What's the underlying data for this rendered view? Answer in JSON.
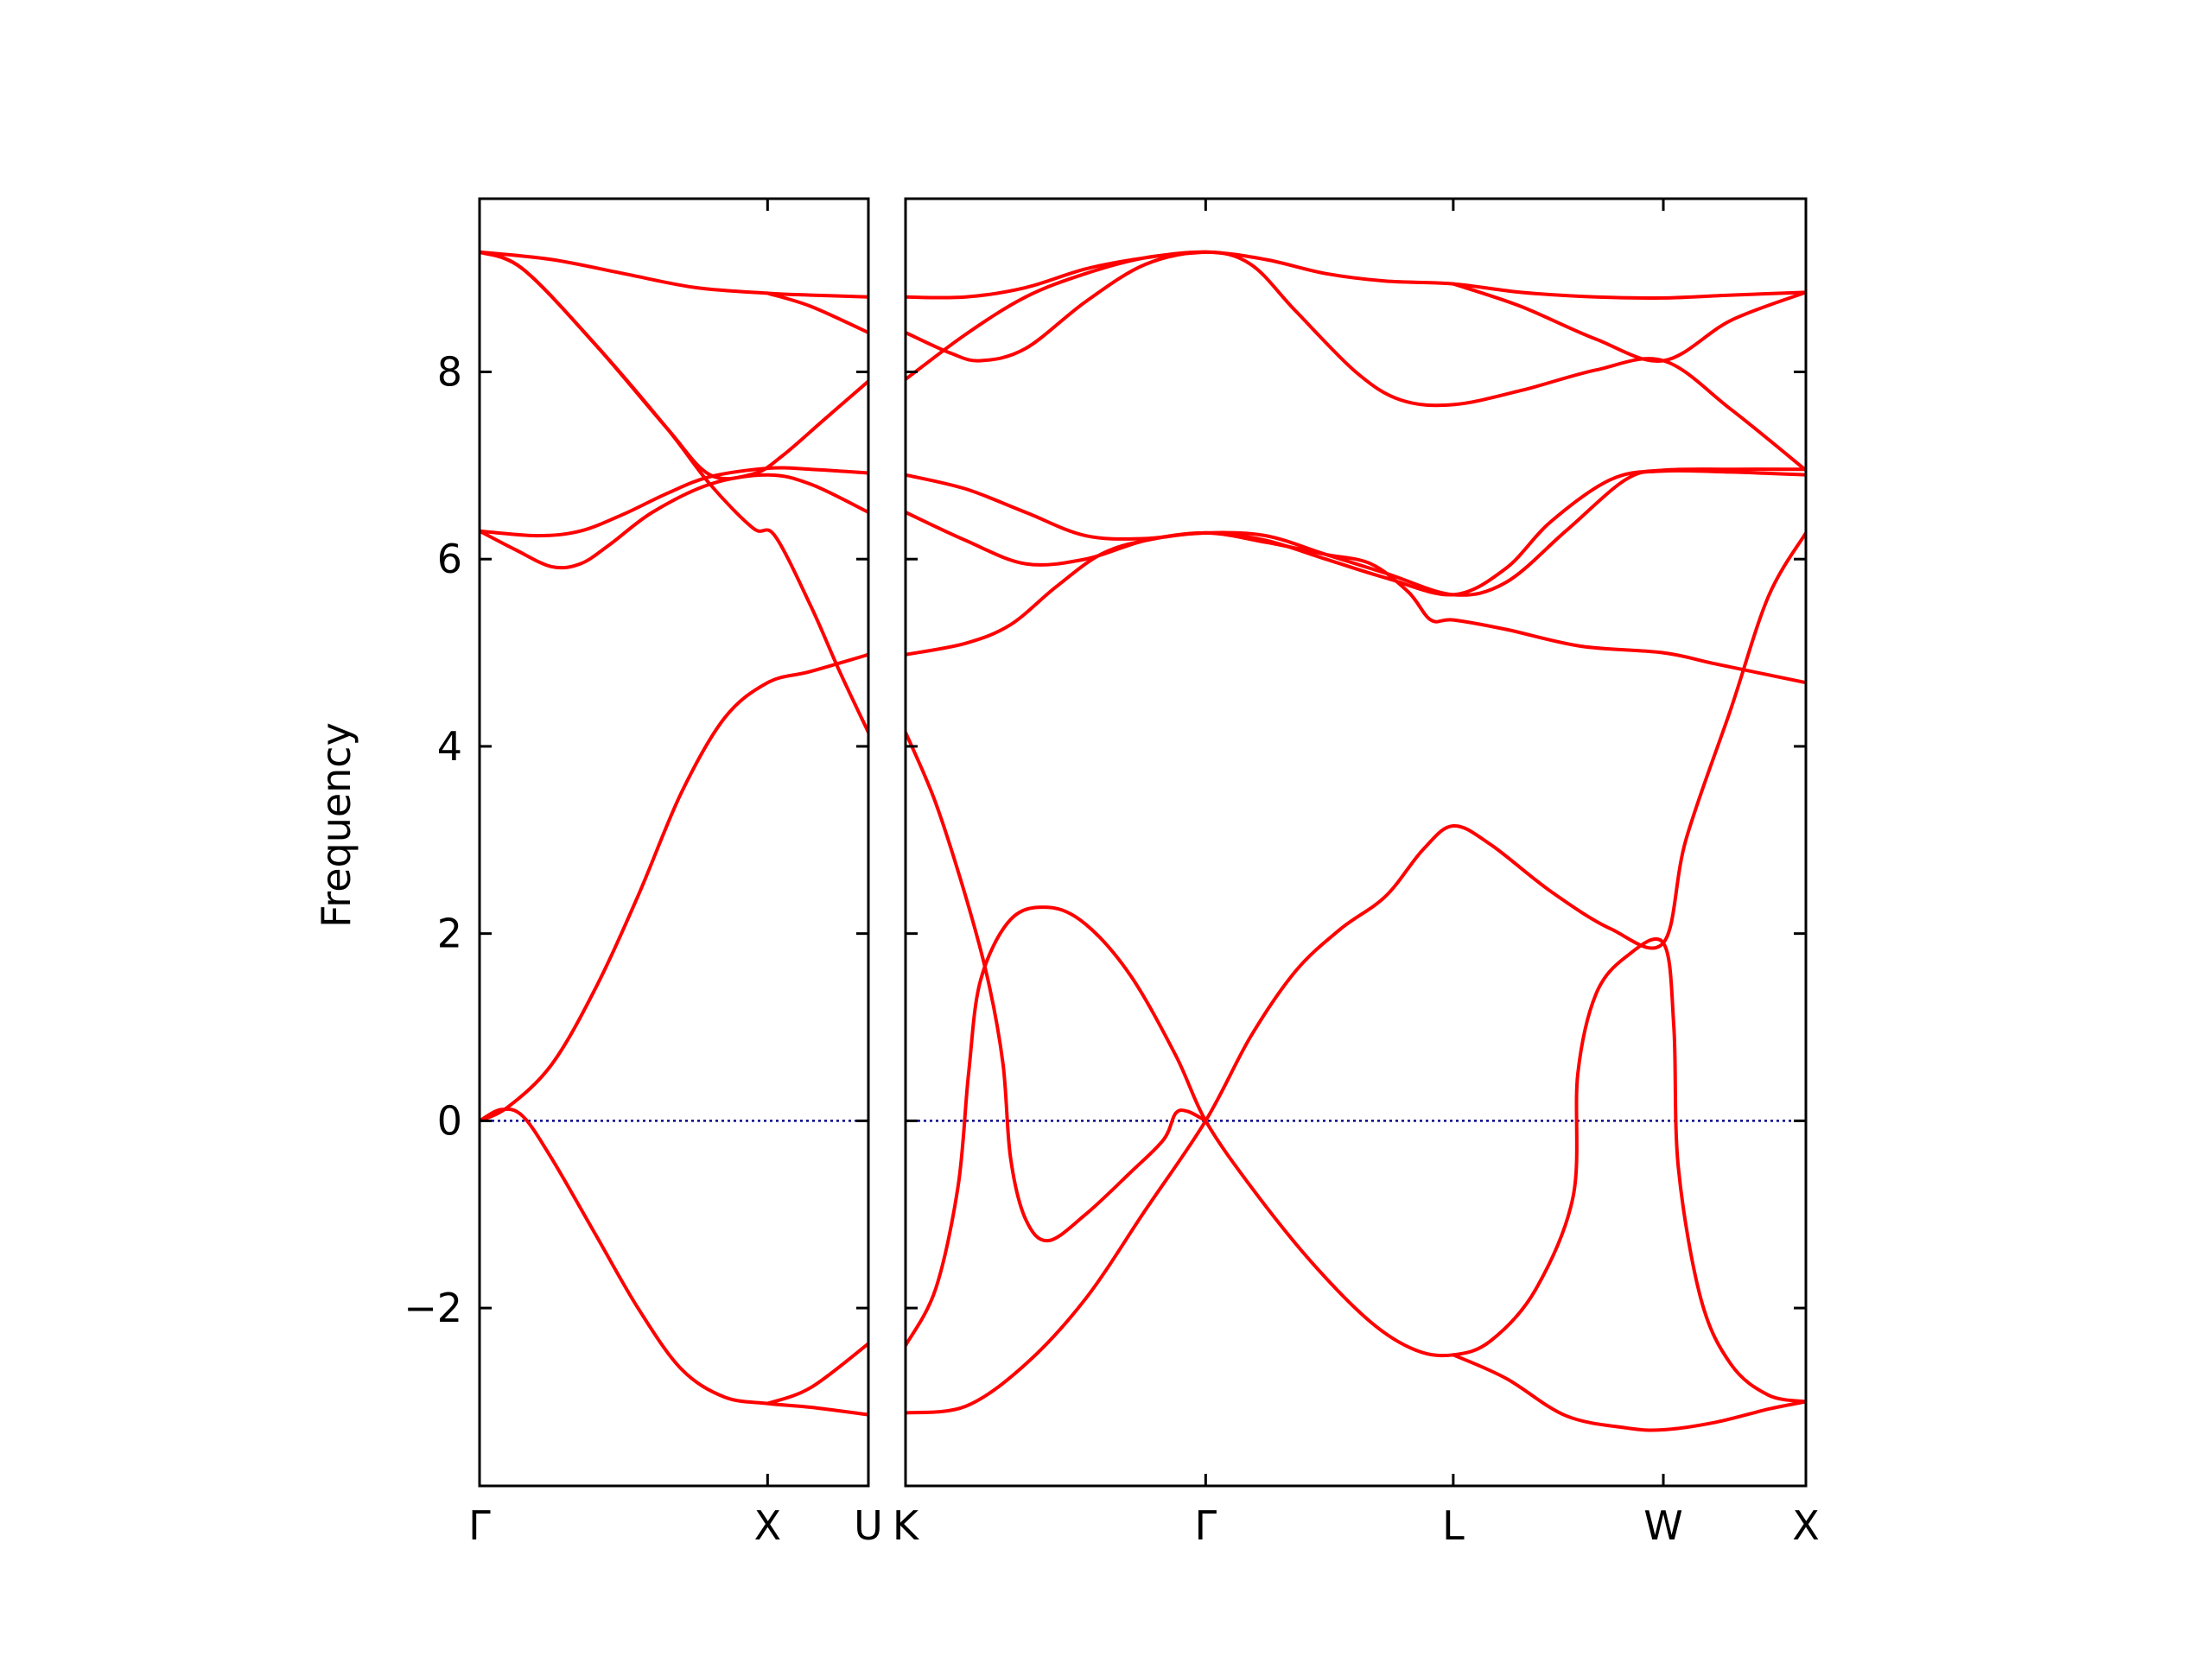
{
  "chart_data": {
    "type": "line",
    "ylabel": "Frequency",
    "ylim": [
      -3.9,
      9.85
    ],
    "yticks": [
      -2,
      0,
      2,
      4,
      6,
      8
    ],
    "ytick_labels": [
      "−2",
      "0",
      "2",
      "4",
      "6",
      "8"
    ],
    "zero_line": true,
    "colors": {
      "bands": "#ff0000",
      "zero_line": "#00008b",
      "axes": "#000000"
    },
    "panels": [
      {
        "name": "left",
        "xlim": [
          0,
          2.7
        ],
        "high_symmetry_points": [
          {
            "label": "Γ",
            "x": 0
          },
          {
            "label": "X",
            "x": 2.0
          },
          {
            "label": "U",
            "x": 2.7
          }
        ],
        "bands": [
          [
            [
              0,
              9.28
            ],
            [
              0.5,
              9.2
            ],
            [
              1.0,
              9.05
            ],
            [
              1.5,
              8.9
            ],
            [
              2.0,
              8.84
            ],
            [
              2.3,
              8.82
            ],
            [
              2.7,
              8.8
            ]
          ],
          [
            [
              0,
              9.28
            ],
            [
              0.3,
              9.1
            ],
            [
              0.8,
              8.3
            ],
            [
              1.3,
              7.4
            ],
            [
              1.6,
              6.8
            ],
            [
              1.9,
              6.33
            ],
            [
              2.05,
              6.25
            ],
            [
              2.3,
              5.5
            ],
            [
              2.5,
              4.8
            ],
            [
              2.7,
              4.15
            ]
          ],
          [
            [
              0,
              6.3
            ],
            [
              0.4,
              6.25
            ],
            [
              0.7,
              6.3
            ],
            [
              1.0,
              6.48
            ],
            [
              1.3,
              6.7
            ],
            [
              1.6,
              6.88
            ],
            [
              2.0,
              6.97
            ],
            [
              2.3,
              6.96
            ],
            [
              2.7,
              6.92
            ]
          ],
          [
            [
              0,
              6.3
            ],
            [
              0.25,
              6.1
            ],
            [
              0.5,
              5.92
            ],
            [
              0.7,
              5.95
            ],
            [
              0.9,
              6.15
            ],
            [
              1.2,
              6.5
            ],
            [
              1.6,
              6.8
            ],
            [
              2.0,
              6.9
            ],
            [
              2.3,
              6.8
            ],
            [
              2.7,
              6.5
            ]
          ],
          [
            [
              0,
              9.28
            ],
            [
              0.3,
              9.1
            ],
            [
              0.8,
              8.3
            ],
            [
              1.3,
              7.4
            ],
            [
              1.6,
              6.9
            ],
            [
              1.9,
              6.91
            ],
            [
              2.1,
              7.1
            ],
            [
              2.4,
              7.5
            ],
            [
              2.7,
              7.9
            ]
          ],
          [
            [
              0,
              0
            ],
            [
              0.15,
              0.12
            ],
            [
              0.3,
              0.05
            ],
            [
              0.5,
              -0.4
            ],
            [
              0.8,
              -1.2
            ],
            [
              1.1,
              -2.0
            ],
            [
              1.4,
              -2.65
            ],
            [
              1.7,
              -2.95
            ],
            [
              2.0,
              -3.02
            ],
            [
              2.3,
              -3.06
            ],
            [
              2.7,
              -3.14
            ]
          ],
          [
            [
              0,
              0
            ],
            [
              0.2,
              0.15
            ],
            [
              0.5,
              0.6
            ],
            [
              0.8,
              1.4
            ],
            [
              1.1,
              2.4
            ],
            [
              1.4,
              3.5
            ],
            [
              1.7,
              4.3
            ],
            [
              2.0,
              4.68
            ],
            [
              2.3,
              4.8
            ],
            [
              2.7,
              4.98
            ]
          ],
          [
            [
              2.0,
              8.84
            ],
            [
              2.3,
              8.7
            ],
            [
              2.7,
              8.42
            ]
          ],
          [
            [
              2.0,
              -3.02
            ],
            [
              2.3,
              -2.85
            ],
            [
              2.7,
              -2.38
            ]
          ]
        ]
      },
      {
        "name": "right",
        "xlim": [
          0,
          6.0
        ],
        "high_symmetry_points": [
          {
            "label": "K",
            "x": 0
          },
          {
            "label": "Γ",
            "x": 2.0
          },
          {
            "label": "L",
            "x": 3.65
          },
          {
            "label": "W",
            "x": 5.05
          },
          {
            "label": "X",
            "x": 6.0
          }
        ],
        "bands": [
          [
            [
              0,
              8.8
            ],
            [
              0.4,
              8.8
            ],
            [
              0.8,
              8.9
            ],
            [
              1.2,
              9.1
            ],
            [
              1.6,
              9.22
            ],
            [
              2.0,
              9.28
            ],
            [
              2.4,
              9.2
            ],
            [
              2.8,
              9.05
            ],
            [
              3.2,
              8.97
            ],
            [
              3.65,
              8.94
            ],
            [
              4.1,
              8.85
            ],
            [
              4.6,
              8.8
            ],
            [
              5.05,
              8.79
            ],
            [
              5.5,
              8.82
            ],
            [
              6.0,
              8.85
            ]
          ],
          [
            [
              0,
              8.42
            ],
            [
              0.3,
              8.2
            ],
            [
              0.5,
              8.12
            ],
            [
              0.8,
              8.25
            ],
            [
              1.2,
              8.75
            ],
            [
              1.6,
              9.15
            ],
            [
              2.0,
              9.28
            ],
            [
              2.3,
              9.15
            ],
            [
              2.6,
              8.65
            ],
            [
              3.0,
              8.0
            ],
            [
              3.3,
              7.7
            ],
            [
              3.65,
              7.65
            ],
            [
              4.1,
              7.8
            ],
            [
              4.6,
              8.02
            ],
            [
              5.05,
              8.12
            ],
            [
              5.5,
              7.6
            ],
            [
              6.0,
              6.95
            ]
          ],
          [
            [
              0,
              7.92
            ],
            [
              0.4,
              8.4
            ],
            [
              0.8,
              8.8
            ],
            [
              1.2,
              9.05
            ],
            [
              1.6,
              9.22
            ],
            [
              2.0,
              9.28
            ]
          ],
          [
            [
              3.65,
              8.94
            ],
            [
              4.1,
              8.7
            ],
            [
              4.6,
              8.35
            ],
            [
              5.05,
              8.12
            ],
            [
              5.5,
              8.55
            ],
            [
              6.0,
              8.85
            ]
          ],
          [
            [
              0,
              6.9
            ],
            [
              0.4,
              6.75
            ],
            [
              0.8,
              6.5
            ],
            [
              1.2,
              6.25
            ],
            [
              1.6,
              6.22
            ],
            [
              2.0,
              6.28
            ],
            [
              2.4,
              6.2
            ],
            [
              2.8,
              6.0
            ],
            [
              3.2,
              5.8
            ],
            [
              3.65,
              5.62
            ],
            [
              4.0,
              5.9
            ],
            [
              4.3,
              6.4
            ],
            [
              4.7,
              6.85
            ],
            [
              5.05,
              6.95
            ],
            [
              5.5,
              6.96
            ],
            [
              6.0,
              6.96
            ]
          ],
          [
            [
              0,
              6.5
            ],
            [
              0.4,
              6.2
            ],
            [
              0.8,
              5.95
            ],
            [
              1.2,
              6.0
            ],
            [
              1.6,
              6.2
            ],
            [
              2.0,
              6.28
            ],
            [
              2.4,
              6.25
            ],
            [
              2.8,
              6.05
            ],
            [
              3.2,
              5.85
            ],
            [
              3.65,
              5.62
            ],
            [
              4.0,
              5.75
            ],
            [
              4.4,
              6.3
            ],
            [
              4.8,
              6.85
            ],
            [
              5.05,
              6.94
            ],
            [
              5.5,
              6.93
            ],
            [
              6.0,
              6.9
            ]
          ],
          [
            [
              0,
              4.98
            ],
            [
              0.4,
              5.1
            ],
            [
              0.7,
              5.3
            ],
            [
              1.0,
              5.7
            ],
            [
              1.3,
              6.05
            ],
            [
              1.6,
              6.2
            ],
            [
              2.0,
              6.28
            ],
            [
              2.4,
              6.18
            ],
            [
              2.8,
              6.05
            ],
            [
              3.1,
              5.95
            ],
            [
              3.35,
              5.65
            ],
            [
              3.5,
              5.35
            ],
            [
              3.65,
              5.35
            ],
            [
              4.0,
              5.25
            ],
            [
              4.5,
              5.07
            ],
            [
              5.05,
              5.0
            ],
            [
              5.4,
              4.88
            ],
            [
              6.0,
              4.68
            ]
          ],
          [
            [
              0,
              4.15
            ],
            [
              0.2,
              3.4
            ],
            [
              0.4,
              2.4
            ],
            [
              0.55,
              1.5
            ],
            [
              0.65,
              0.6
            ],
            [
              0.7,
              -0.4
            ],
            [
              0.8,
              -1.05
            ],
            [
              0.95,
              -1.28
            ],
            [
              1.2,
              -1.0
            ],
            [
              1.5,
              -0.55
            ],
            [
              1.72,
              -0.2
            ],
            [
              1.8,
              0.08
            ],
            [
              1.88,
              0.1
            ],
            [
              2.0,
              0
            ]
          ],
          [
            [
              0,
              -2.4
            ],
            [
              0.2,
              -1.8
            ],
            [
              0.35,
              -0.7
            ],
            [
              0.42,
              0.5
            ],
            [
              0.5,
              1.5
            ],
            [
              0.7,
              2.15
            ],
            [
              0.95,
              2.28
            ],
            [
              1.2,
              2.1
            ],
            [
              1.5,
              1.55
            ],
            [
              1.8,
              0.7
            ],
            [
              2.0,
              0
            ],
            [
              2.3,
              -0.7
            ],
            [
              2.7,
              -1.5
            ],
            [
              3.1,
              -2.15
            ],
            [
              3.4,
              -2.45
            ],
            [
              3.65,
              -2.5
            ],
            [
              3.9,
              -2.35
            ],
            [
              4.2,
              -1.8
            ],
            [
              4.45,
              -0.8
            ],
            [
              4.48,
              0.5
            ],
            [
              4.6,
              1.35
            ],
            [
              4.8,
              1.75
            ],
            [
              5.05,
              1.9
            ],
            [
              5.12,
              1.0
            ],
            [
              5.15,
              -0.5
            ],
            [
              5.3,
              -1.9
            ],
            [
              5.5,
              -2.6
            ],
            [
              5.75,
              -2.93
            ],
            [
              6.0,
              -3.0
            ]
          ],
          [
            [
              0,
              -3.12
            ],
            [
              0.4,
              -3.05
            ],
            [
              0.8,
              -2.6
            ],
            [
              1.2,
              -1.9
            ],
            [
              1.6,
              -0.95
            ],
            [
              2.0,
              0
            ],
            [
              2.3,
              0.9
            ],
            [
              2.6,
              1.6
            ],
            [
              2.9,
              2.05
            ],
            [
              3.2,
              2.4
            ],
            [
              3.45,
              2.9
            ],
            [
              3.65,
              3.15
            ],
            [
              3.9,
              2.95
            ],
            [
              4.3,
              2.45
            ],
            [
              4.7,
              2.05
            ],
            [
              5.05,
              1.9
            ],
            [
              5.2,
              3.0
            ],
            [
              5.5,
              4.4
            ],
            [
              5.75,
              5.6
            ],
            [
              6.0,
              6.28
            ]
          ],
          [
            [
              3.65,
              -2.5
            ],
            [
              4.0,
              -2.75
            ],
            [
              4.4,
              -3.15
            ],
            [
              4.8,
              -3.28
            ],
            [
              5.05,
              -3.3
            ],
            [
              5.4,
              -3.22
            ],
            [
              5.75,
              -3.08
            ],
            [
              6.0,
              -3.0
            ]
          ]
        ]
      }
    ]
  }
}
